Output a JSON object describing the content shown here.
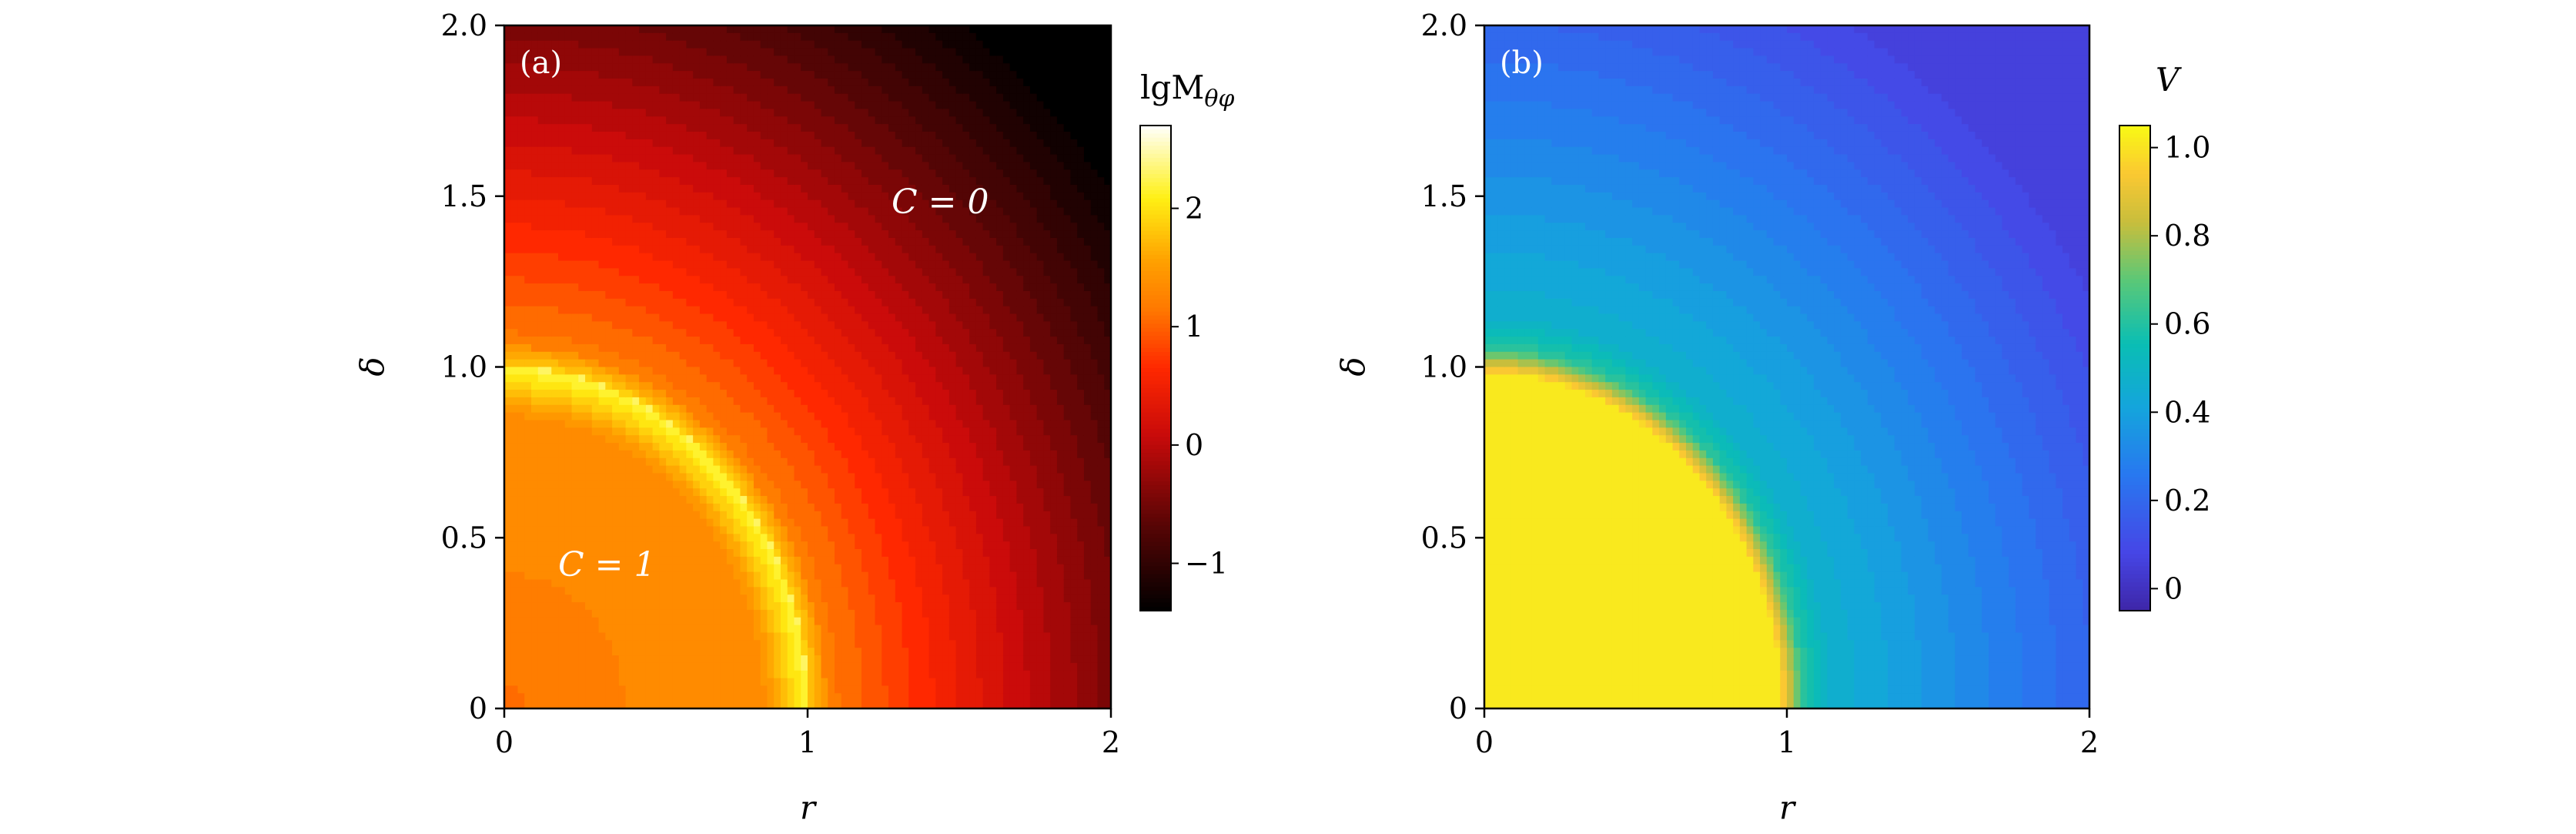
{
  "chart_data": [
    {
      "type": "heatmap",
      "panel_label": "(a)",
      "xlabel": "r",
      "ylabel": "δ",
      "xlim": [
        0,
        2
      ],
      "ylim": [
        0,
        2
      ],
      "x_ticks": [
        "0",
        "1",
        "2"
      ],
      "y_ticks": [
        "0",
        "0.5",
        "1.0",
        "1.5",
        "2.0"
      ],
      "colorbar": {
        "label": "lgM",
        "label_sub": "θφ",
        "range": [
          -1.4,
          2.7
        ],
        "ticks": [
          "−1",
          "0",
          "1",
          "2"
        ],
        "tick_values": [
          -1,
          0,
          1,
          2
        ],
        "colormap": "hot"
      },
      "annotations": [
        {
          "text": "C = 1",
          "region": "inside unit quarter-disc"
        },
        {
          "text": "C = 0",
          "region": "outside unit quarter-disc"
        }
      ]
    },
    {
      "type": "heatmap",
      "panel_label": "(b)",
      "xlabel": "r",
      "ylabel": "δ",
      "xlim": [
        0,
        2
      ],
      "ylim": [
        0,
        2
      ],
      "x_ticks": [
        "0",
        "1",
        "2"
      ],
      "y_ticks": [
        "0",
        "0.5",
        "1.0",
        "1.5",
        "2.0"
      ],
      "colorbar": {
        "label": "V",
        "range": [
          -0.05,
          1.05
        ],
        "ticks": [
          "0",
          "0.2",
          "0.4",
          "0.6",
          "0.8",
          "1.0"
        ],
        "tick_values": [
          0,
          0.2,
          0.4,
          0.6,
          0.8,
          1.0
        ],
        "colormap": "parula"
      }
    }
  ]
}
